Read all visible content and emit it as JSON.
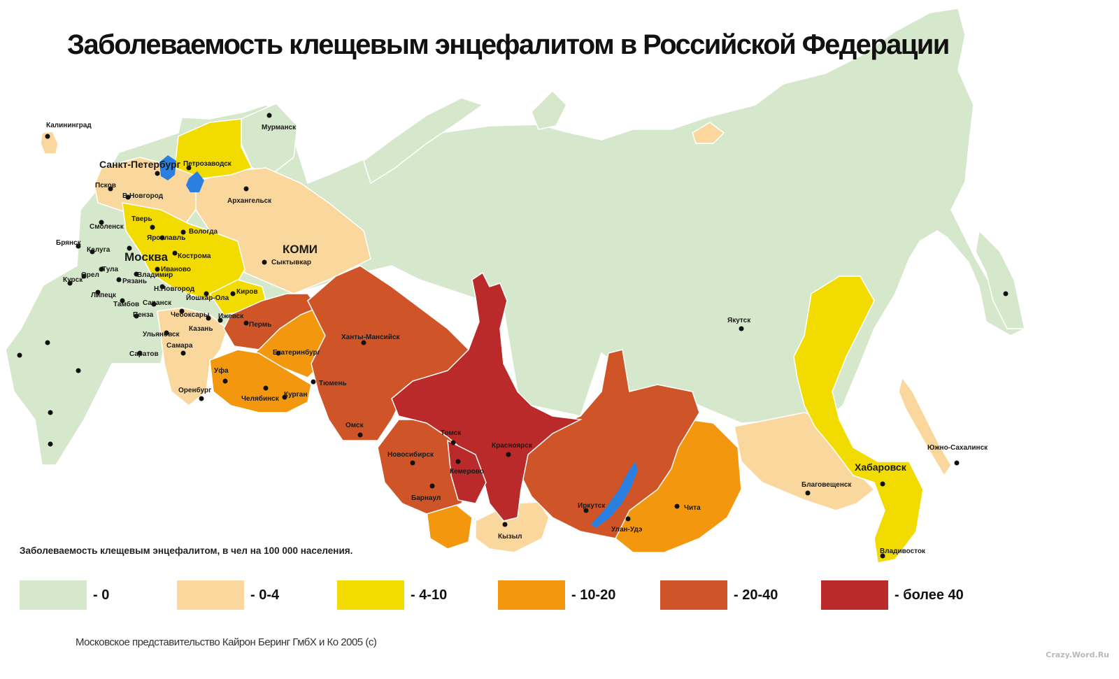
{
  "title": "Заболеваемость клещевым энцефалитом в Российской Федерации",
  "legend": {
    "caption": "Заболеваемость клещевым энцефалитом, в чел на 100 000 населения.",
    "items": [
      {
        "label": "- 0",
        "color": "#d6e8cc"
      },
      {
        "label": "- 0-4",
        "color": "#fad79c"
      },
      {
        "label": "- 4-10",
        "color": "#f2dc00"
      },
      {
        "label": "- 10-20",
        "color": "#f3980e"
      },
      {
        "label": "- 20-40",
        "color": "#cf5529"
      },
      {
        "label": "- более 40",
        "color": "#bb2a2a"
      }
    ]
  },
  "lakes_color": "#2a7fe0",
  "credit": "Московское представительство Кайрон Беринг ГмбХ и Ко 2005 (с)",
  "watermark": "Crazy.Word.Ru",
  "cities": [
    "Калининград",
    "Мурманск",
    "Санкт-Петербург",
    "Петрозаводск",
    "Псков",
    "В.Новгород",
    "Архангельск",
    "Тверь",
    "Вологда",
    "Смоленск",
    "Ярославль",
    "Брянск",
    "Калуга",
    "Москва",
    "Кострома",
    "Тула",
    "Иваново",
    "Орел",
    "Рязань",
    "Владимир",
    "Курск",
    "Н.Новгород",
    "Липецк",
    "Йошкар-Ола",
    "Тамбов",
    "Саранск",
    "Пенза",
    "Чебоксары",
    "Казань",
    "Ульяновск",
    "Самара",
    "Саратов",
    "Оренбург",
    "КОМИ",
    "Сыктывкар",
    "Киров",
    "Ижевск",
    "Пермь",
    "Екатеринбург",
    "Уфа",
    "Челябинск",
    "Курган",
    "Тюмень",
    "Ханты-Мансийск",
    "Омск",
    "Томск",
    "Новосибирск",
    "Кемерово",
    "Красноярск",
    "Барнаул",
    "Кызыл",
    "Иркутск",
    "Улан-Удэ",
    "Чита",
    "Якутск",
    "Благовещенск",
    "Хабаровск",
    "Южно-Сахалинск",
    "Владивосток"
  ]
}
